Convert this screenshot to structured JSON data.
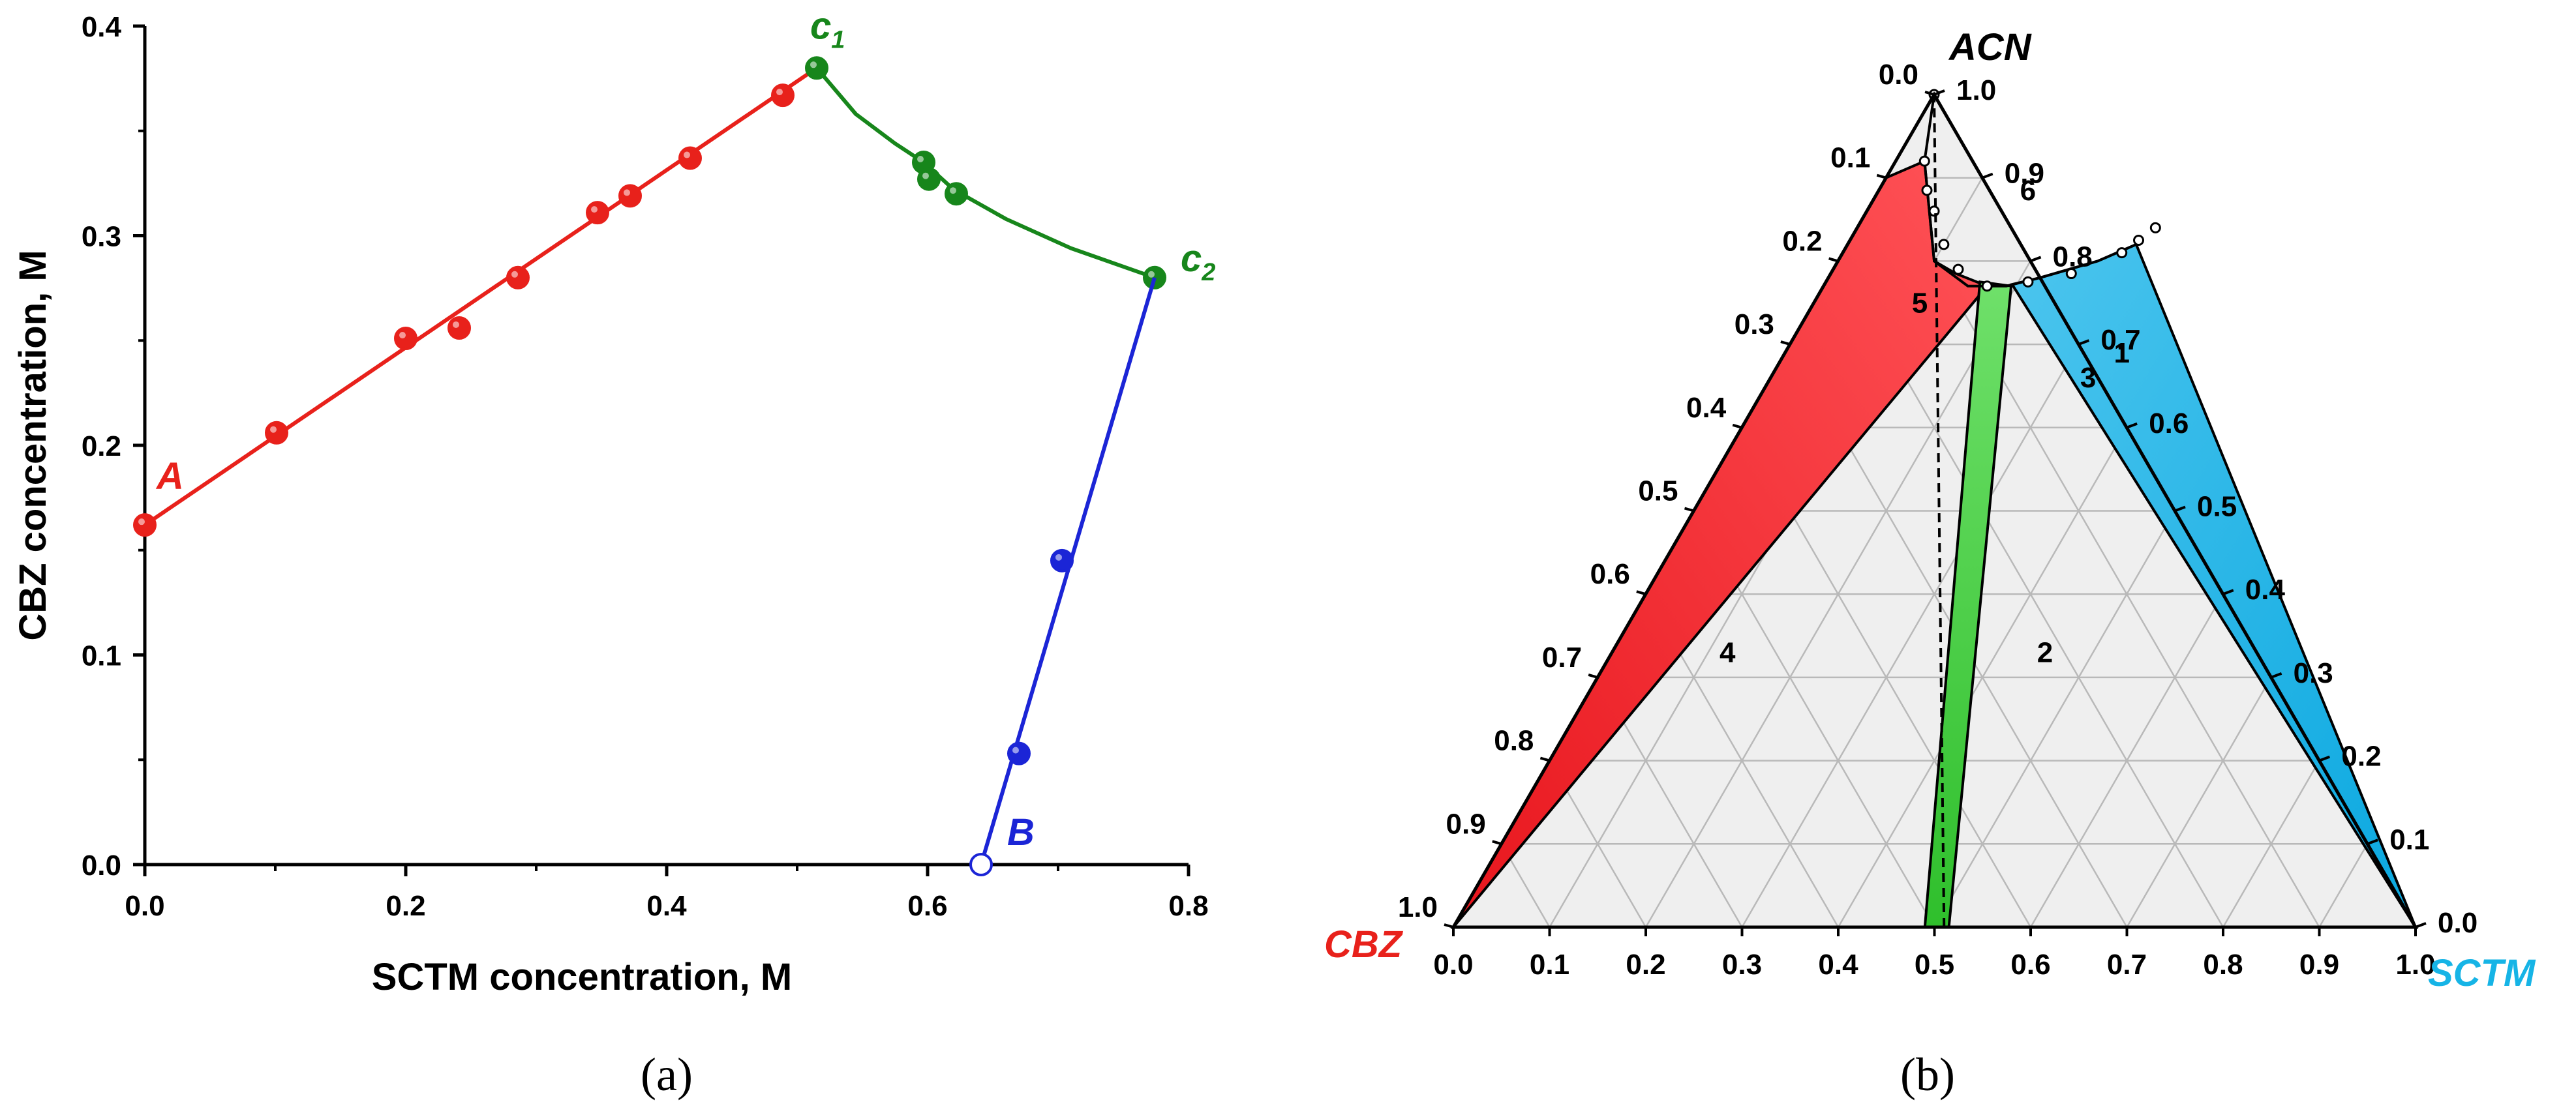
{
  "chart_data": [
    {
      "type": "scatter",
      "panel": "(a)",
      "xlabel": "SCTM concentration, M",
      "ylabel": "CBZ concentration, M",
      "xlim": [
        0.0,
        0.8
      ],
      "ylim": [
        0.0,
        0.4
      ],
      "x_ticks": [
        "0.0",
        "0.2",
        "0.4",
        "0.6",
        "0.8"
      ],
      "y_ticks": [
        "0.0",
        "0.1",
        "0.2",
        "0.3",
        "0.4"
      ],
      "x_tick_values": [
        0.0,
        0.2,
        0.4,
        0.6,
        0.8
      ],
      "y_tick_values": [
        0.0,
        0.1,
        0.2,
        0.3,
        0.4
      ],
      "series": [
        {
          "color": "#e8211b",
          "points": [
            [
              0.0,
              0.162
            ],
            [
              0.101,
              0.206
            ],
            [
              0.2,
              0.251
            ],
            [
              0.241,
              0.256
            ],
            [
              0.286,
              0.28
            ],
            [
              0.347,
              0.311
            ],
            [
              0.372,
              0.319
            ],
            [
              0.418,
              0.337
            ],
            [
              0.489,
              0.367
            ]
          ],
          "line": [
            [
              0.0,
              0.162
            ],
            [
              0.515,
              0.38
            ]
          ]
        },
        {
          "color": "#17861b",
          "points": [
            [
              0.515,
              0.38
            ],
            [
              0.597,
              0.335
            ],
            [
              0.601,
              0.327
            ],
            [
              0.622,
              0.32
            ],
            [
              0.774,
              0.28
            ]
          ],
          "curve": [
            [
              0.515,
              0.38
            ],
            [
              0.545,
              0.358
            ],
            [
              0.575,
              0.344
            ],
            [
              0.597,
              0.335
            ],
            [
              0.62,
              0.322
            ],
            [
              0.66,
              0.308
            ],
            [
              0.71,
              0.294
            ],
            [
              0.774,
              0.28
            ]
          ]
        },
        {
          "color": "#1b25d6",
          "points": [
            [
              0.641,
              0.0
            ],
            [
              0.67,
              0.053
            ],
            [
              0.703,
              0.145
            ]
          ],
          "line": [
            [
              0.641,
              0.0
            ],
            [
              0.774,
              0.28
            ]
          ]
        }
      ],
      "annotations": [
        {
          "text": "A",
          "x": 0.0,
          "y": 0.162,
          "color": "#e8211b"
        },
        {
          "text": "c",
          "sub": "1",
          "x": 0.515,
          "y": 0.38,
          "color": "#17861b"
        },
        {
          "text": "c",
          "sub": "2",
          "x": 0.774,
          "y": 0.28,
          "color": "#17861b"
        },
        {
          "text": "B",
          "x": 0.641,
          "y": 0.0,
          "color": "#1b25d6"
        }
      ]
    },
    {
      "type": "ternary",
      "panel": "(b)",
      "vertices": {
        "top": "ACN",
        "left": "CBZ",
        "right": "SCTM"
      },
      "vertex_colors": {
        "top": "#000000",
        "left": "#e8211b",
        "right": "#16b4e6"
      },
      "ticks": [
        "0.0",
        "0.1",
        "0.2",
        "0.3",
        "0.4",
        "0.5",
        "0.6",
        "0.7",
        "0.8",
        "0.9",
        "1.0"
      ],
      "tick_values": [
        0.0,
        0.1,
        0.2,
        0.3,
        0.4,
        0.5,
        0.6,
        0.7,
        0.8,
        0.9,
        1.0
      ],
      "regions": [
        {
          "label": "1",
          "color": "#f2333a",
          "label_at": [
            0.35,
            0.69
          ]
        },
        {
          "label": "2",
          "color": "#efefef",
          "label_at": [
            0.45,
            0.33
          ]
        },
        {
          "label": "3",
          "color": "#3fcf3a",
          "label_at": [
            0.33,
            0.66
          ]
        },
        {
          "label": "4",
          "color": "#efefef",
          "label_at": [
            0.12,
            0.33
          ]
        },
        {
          "label": "5",
          "color": "#12b6e6",
          "label_at": [
            0.11,
            0.75
          ]
        },
        {
          "label": "6",
          "color": "#ffffff",
          "label_at": [
            0.155,
            0.885
          ]
        }
      ],
      "solubility_curve": [
        [
          0.0,
          1.0
        ],
        [
          0.03,
          0.92
        ],
        [
          0.065,
          0.86
        ],
        [
          0.1,
          0.8
        ],
        [
          0.15,
          0.77
        ],
        [
          0.19,
          0.77
        ],
        [
          0.22,
          0.78
        ],
        [
          0.27,
          0.8
        ],
        [
          0.3,
          0.82
        ]
      ],
      "solubility_points": [
        [
          0.0,
          1.0
        ],
        [
          0.03,
          0.92
        ],
        [
          0.05,
          0.885
        ],
        [
          0.07,
          0.86
        ],
        [
          0.1,
          0.82
        ],
        [
          0.13,
          0.79
        ],
        [
          0.17,
          0.77
        ],
        [
          0.21,
          0.775
        ],
        [
          0.25,
          0.785
        ],
        [
          0.29,
          0.81
        ],
        [
          0.3,
          0.825
        ],
        [
          0.31,
          0.84
        ]
      ],
      "dashed_line": [
        [
          0.51,
          0.0
        ],
        [
          0.0,
          1.0
        ]
      ]
    }
  ]
}
